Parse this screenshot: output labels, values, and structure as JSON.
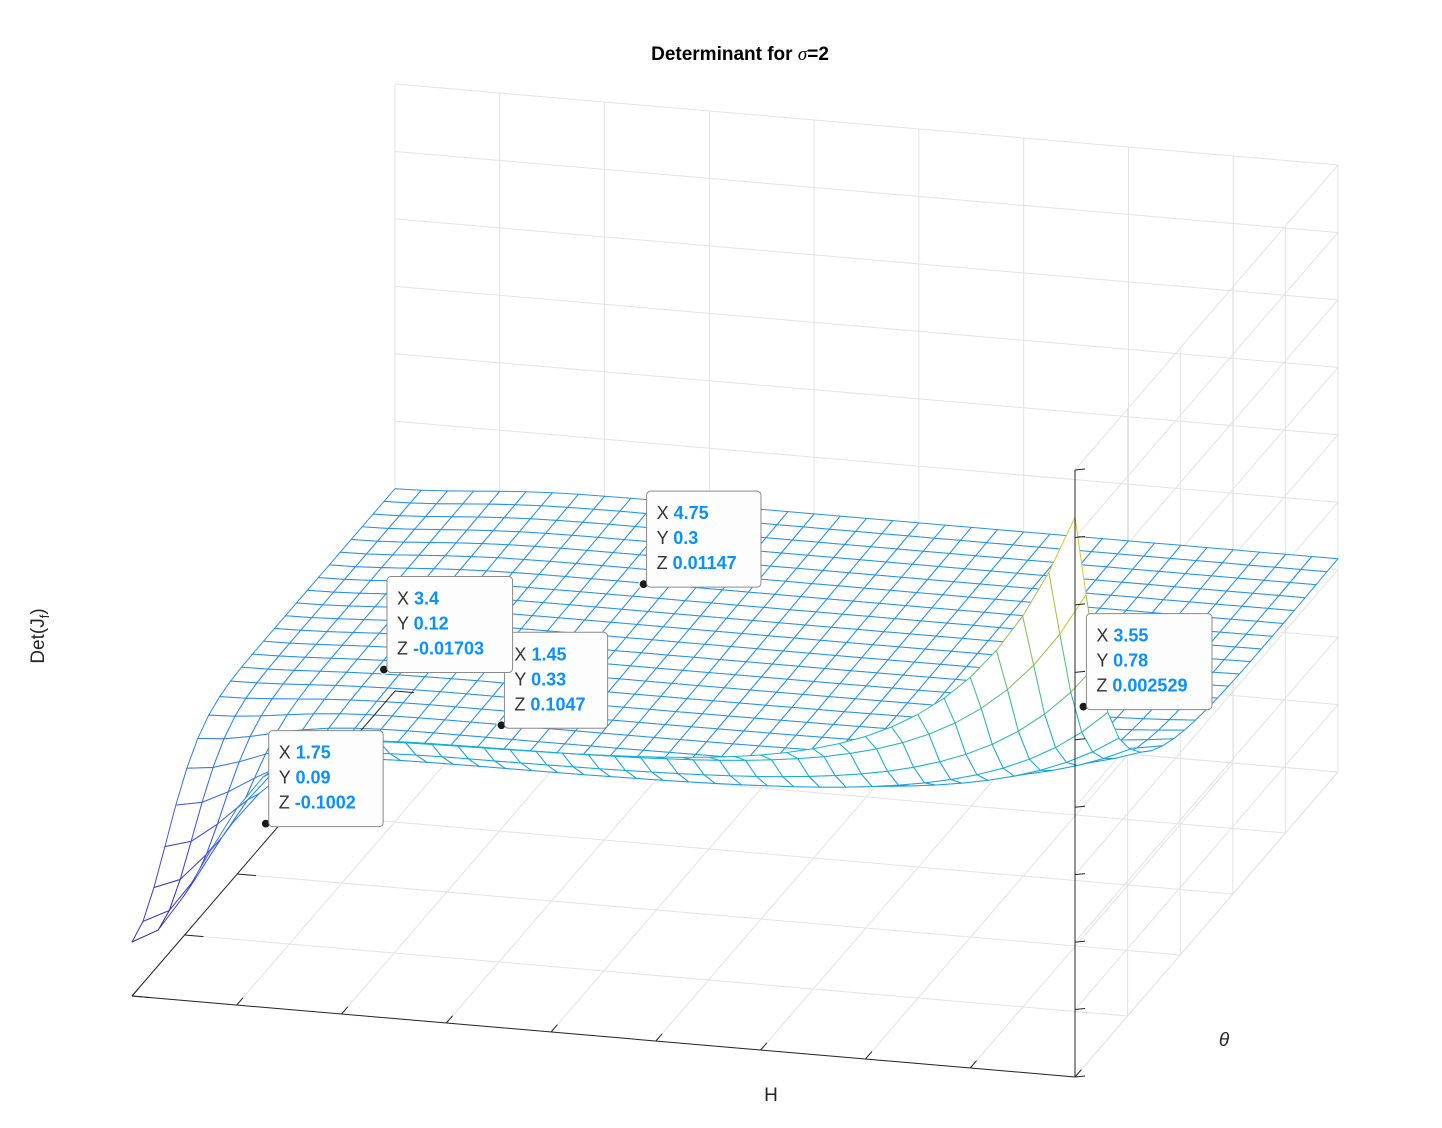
{
  "chart_data": {
    "type": "surface",
    "title": "Determinant for σ=2",
    "title_prefix": "Determinant for ",
    "title_symbol": "σ",
    "title_suffix": "=2",
    "xlabel": "H",
    "ylabel": "θ",
    "zlabel_main": "Det(J",
    "zlabel_sub": "f",
    "zlabel_close": ")",
    "xlim": [
      0,
      0.9
    ],
    "ylim": [
      1,
      6
    ],
    "zlim": [
      -0.3,
      0.6
    ],
    "x_ticks": [
      "0",
      "0.1",
      "0.2",
      "0.3",
      "0.4",
      "0.5",
      "0.6",
      "0.7",
      "0.8",
      "0.9"
    ],
    "y_ticks": [
      "1",
      "2",
      "3",
      "4",
      "5",
      "6"
    ],
    "z_ticks": [
      "-0.3",
      "-0.2",
      "-0.1",
      "0",
      "0.1",
      "0.2",
      "0.3",
      "0.4",
      "0.5",
      "0.6"
    ],
    "grid": true,
    "colormap": "parula",
    "colors": {
      "axis": "#262626",
      "grid": "#e3e3e3",
      "datatip_value": "#0a91ff",
      "marker": "#1a1a1a"
    },
    "datatips": [
      {
        "X": "3.55",
        "Y": "0.78",
        "Z": "0.002529"
      },
      {
        "X": "4.75",
        "Y": "0.3",
        "Z": "0.01147"
      },
      {
        "X": "1.45",
        "Y": "0.33",
        "Z": "0.1047"
      },
      {
        "X": "3.4",
        "Y": "0.12",
        "Z": "-0.01703"
      },
      {
        "X": "1.75",
        "Y": "0.09",
        "Z": "-0.1002"
      }
    ],
    "datatip_keys": {
      "x": "X",
      "y": "Y",
      "z": "Z"
    }
  }
}
